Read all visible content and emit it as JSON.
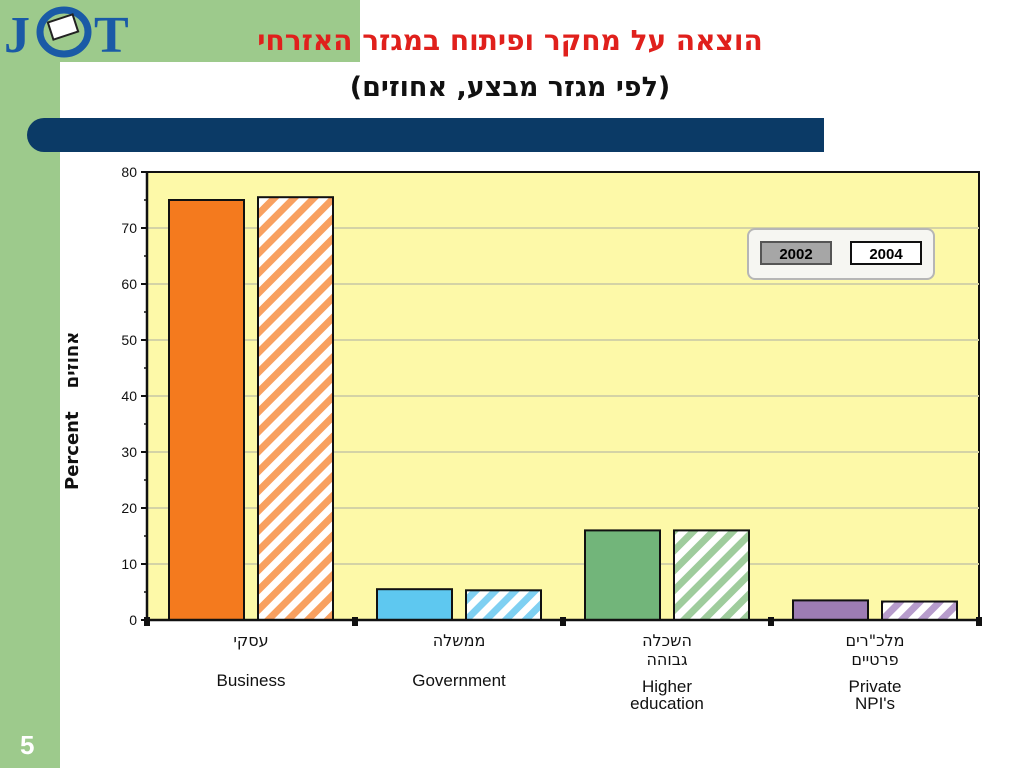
{
  "slide": {
    "logo_text": "JCT",
    "title_line1": "הוצאה על מחקר ופיתוח במגזר האזרחי",
    "title_line2": "(לפי מגזר מבצע, אחוזים)",
    "page_number": "5",
    "colors": {
      "side_band": "#9dca8c",
      "blue_bar": "#0b3a66",
      "title": "#e0201c"
    }
  },
  "chart_data": {
    "type": "bar",
    "ylabel_en": "Percent",
    "ylabel_he": "אחוזים",
    "ylim": [
      0,
      80
    ],
    "yticks": [
      "0",
      "10",
      "20",
      "30",
      "40",
      "50",
      "60",
      "70",
      "80"
    ],
    "categories": [
      {
        "he": [
          "עסקי"
        ],
        "en": [
          "Business"
        ],
        "color": "#f47a1e",
        "stripe": "#f8a060"
      },
      {
        "he": [
          "ממשלה"
        ],
        "en": [
          "Government"
        ],
        "color": "#5ec8f0",
        "stripe": "#7fd0f2"
      },
      {
        "he": [
          "השכלה",
          "גבוהה"
        ],
        "en": [
          "Higher",
          "education"
        ],
        "color": "#72b57a",
        "stripe": "#9fcc9d"
      },
      {
        "he": [
          "מלכ\"רים",
          "פרטיים"
        ],
        "en": [
          "Private",
          "NPI's"
        ],
        "color": "#9d7cb4",
        "stripe": "#b79ccc"
      }
    ],
    "series": [
      {
        "name": "2002",
        "values": [
          75,
          5.5,
          16,
          3.5
        ]
      },
      {
        "name": "2004",
        "values": [
          75.5,
          5.3,
          16,
          3.3
        ]
      }
    ],
    "legend_position": "top-right",
    "plot_background": "#fdf9a8",
    "grid": true
  }
}
